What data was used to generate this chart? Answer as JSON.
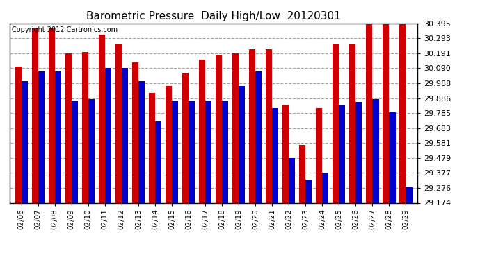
{
  "title": "Barometric Pressure  Daily High/Low  20120301",
  "copyright": "Copyright 2012 Cartronics.com",
  "dates": [
    "02/06",
    "02/07",
    "02/08",
    "02/09",
    "02/10",
    "02/11",
    "02/12",
    "02/13",
    "02/14",
    "02/15",
    "02/16",
    "02/17",
    "02/18",
    "02/19",
    "02/20",
    "02/21",
    "02/22",
    "02/23",
    "02/24",
    "02/25",
    "02/26",
    "02/27",
    "02/28",
    "02/29"
  ],
  "highs": [
    30.1,
    30.36,
    30.36,
    30.19,
    30.2,
    30.32,
    30.25,
    30.13,
    29.92,
    29.97,
    30.06,
    30.15,
    30.18,
    30.19,
    30.22,
    30.22,
    29.84,
    29.57,
    29.82,
    30.25,
    30.25,
    30.39,
    30.39,
    30.39
  ],
  "lows": [
    30.0,
    30.07,
    30.07,
    29.87,
    29.88,
    30.09,
    30.09,
    30.0,
    29.73,
    29.87,
    29.87,
    29.87,
    29.87,
    29.97,
    30.07,
    29.82,
    29.48,
    29.33,
    29.38,
    29.84,
    29.86,
    29.88,
    29.79,
    29.28
  ],
  "high_color": "#cc0000",
  "low_color": "#0000cc",
  "ylim_min": 29.174,
  "ylim_max": 30.395,
  "yticks": [
    29.174,
    29.276,
    29.377,
    29.479,
    29.581,
    29.683,
    29.785,
    29.886,
    29.988,
    30.09,
    30.191,
    30.293,
    30.395
  ],
  "bg_color": "#ffffff",
  "grid_color": "#999999",
  "title_fontsize": 11,
  "copyright_fontsize": 7,
  "fig_width": 6.9,
  "fig_height": 3.75,
  "bar_width": 0.38
}
